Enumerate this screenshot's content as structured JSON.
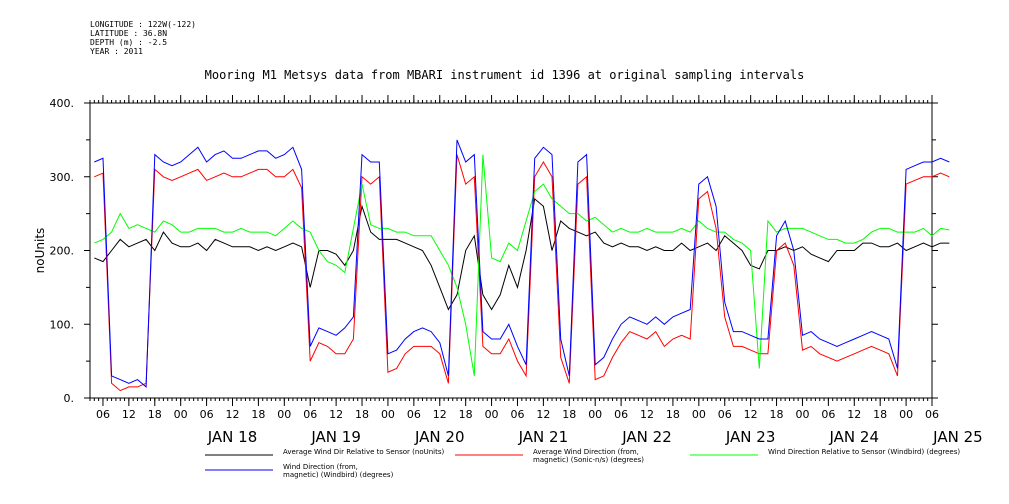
{
  "header": {
    "longitude": "LONGITUDE : 122W(-122)",
    "latitude": "LATITUDE : 36.8N",
    "depth": "DEPTH (m) : -2.5",
    "year": "YEAR : 2011"
  },
  "chart_data": {
    "type": "line",
    "title": "Mooring M1 Metsys data from MBARI instrument id 1396 at original sampling intervals",
    "ylabel": "noUnits",
    "ylim": [
      0,
      400
    ],
    "yticks": [
      0,
      100,
      200,
      300,
      400
    ],
    "ytick_labels": [
      "0.",
      "100.",
      "200.",
      "300.",
      "400."
    ],
    "xlim": [
      "2011-01-17T03:00",
      "2011-01-25T06:00"
    ],
    "hour_ticks": [
      "06",
      "12",
      "18",
      "00",
      "06",
      "12",
      "18",
      "00",
      "06",
      "12",
      "18",
      "00",
      "06",
      "12",
      "18",
      "00",
      "06",
      "12",
      "18",
      "00",
      "06",
      "12",
      "18",
      "00",
      "06",
      "12",
      "18",
      "00",
      "06",
      "12",
      "18",
      "00",
      "06"
    ],
    "date_labels": [
      "JAN 18",
      "JAN 19",
      "JAN 20",
      "JAN 21",
      "JAN 22",
      "JAN 23",
      "JAN 24",
      "JAN 25"
    ],
    "x_unit": "hours since 2011-01-17 00:00",
    "x": [
      4,
      6,
      8,
      10,
      12,
      14,
      16,
      18,
      20,
      22,
      24,
      26,
      28,
      30,
      32,
      34,
      36,
      38,
      40,
      42,
      44,
      46,
      48,
      50,
      52,
      54,
      56,
      58,
      60,
      62,
      64,
      66,
      68,
      70,
      72,
      74,
      76,
      78,
      80,
      82,
      84,
      86,
      88,
      90,
      92,
      94,
      96,
      98,
      100,
      102,
      104,
      106,
      108,
      110,
      112,
      114,
      116,
      118,
      120,
      122,
      124,
      126,
      128,
      130,
      132,
      134,
      136,
      138,
      140,
      142,
      144,
      146,
      148,
      150,
      152,
      154,
      156,
      158,
      160,
      162,
      164,
      166,
      168,
      170,
      172,
      174,
      176,
      178,
      180,
      182,
      184,
      186,
      188,
      190,
      192,
      194,
      196,
      198,
      200,
      202
    ],
    "series": [
      {
        "name": "Average Wind Dir Relative to Sensor (noUnits)",
        "color": "#000000",
        "values": [
          190,
          185,
          200,
          215,
          205,
          210,
          215,
          200,
          225,
          210,
          205,
          205,
          210,
          200,
          215,
          210,
          205,
          205,
          205,
          200,
          205,
          200,
          205,
          210,
          205,
          150,
          200,
          200,
          195,
          180,
          200,
          260,
          225,
          215,
          215,
          215,
          210,
          205,
          200,
          180,
          150,
          120,
          140,
          200,
          220,
          140,
          120,
          140,
          180,
          150,
          200,
          270,
          260,
          200,
          240,
          230,
          225,
          220,
          225,
          210,
          205,
          210,
          205,
          205,
          200,
          205,
          200,
          200,
          210,
          200,
          205,
          210,
          200,
          220,
          210,
          200,
          180,
          175,
          200,
          200,
          205,
          200,
          205,
          195,
          190,
          185,
          200,
          200,
          200,
          210,
          210,
          205,
          205,
          210,
          200,
          205,
          210,
          205,
          210,
          210
        ]
      },
      {
        "name": "Average Wind Direction (from, magnetic) (Sonic-n/s) (degrees)",
        "color": "#ff0000",
        "values": [
          300,
          305,
          20,
          10,
          15,
          15,
          20,
          310,
          300,
          295,
          300,
          305,
          310,
          295,
          300,
          305,
          300,
          300,
          305,
          310,
          310,
          300,
          300,
          310,
          285,
          50,
          75,
          70,
          60,
          60,
          80,
          300,
          290,
          300,
          35,
          40,
          60,
          70,
          70,
          70,
          60,
          20,
          330,
          290,
          300,
          70,
          60,
          60,
          80,
          50,
          30,
          300,
          320,
          300,
          55,
          20,
          290,
          300,
          25,
          30,
          55,
          75,
          90,
          85,
          80,
          90,
          70,
          80,
          85,
          80,
          270,
          280,
          230,
          110,
          70,
          70,
          65,
          60,
          60,
          200,
          210,
          180,
          65,
          70,
          60,
          55,
          50,
          55,
          60,
          65,
          70,
          65,
          60,
          30,
          290,
          295,
          300,
          300,
          305,
          300
        ]
      },
      {
        "name": "Wind Direction Relative to Sensor (Windbird) (degrees)",
        "color": "#00ff00",
        "values": [
          210,
          215,
          225,
          250,
          230,
          235,
          230,
          225,
          240,
          235,
          225,
          225,
          230,
          230,
          230,
          225,
          225,
          230,
          225,
          225,
          225,
          220,
          230,
          240,
          230,
          225,
          200,
          185,
          180,
          170,
          230,
          290,
          235,
          230,
          230,
          225,
          225,
          220,
          220,
          220,
          200,
          180,
          150,
          100,
          30,
          330,
          190,
          185,
          210,
          200,
          240,
          280,
          290,
          270,
          260,
          250,
          250,
          240,
          245,
          235,
          225,
          230,
          225,
          225,
          230,
          225,
          225,
          225,
          230,
          225,
          240,
          230,
          225,
          225,
          215,
          210,
          200,
          40,
          240,
          225,
          230,
          230,
          230,
          225,
          220,
          215,
          215,
          210,
          210,
          215,
          225,
          230,
          230,
          225,
          225,
          225,
          230,
          220,
          230,
          228
        ]
      },
      {
        "name": "Wind Direction (from, magnetic) (Windbird) (degrees)",
        "color": "#0000ff",
        "values": [
          320,
          325,
          30,
          25,
          20,
          25,
          15,
          330,
          320,
          315,
          320,
          330,
          340,
          320,
          330,
          335,
          325,
          325,
          330,
          335,
          335,
          325,
          330,
          340,
          310,
          70,
          95,
          90,
          85,
          95,
          110,
          330,
          320,
          320,
          60,
          65,
          80,
          90,
          95,
          90,
          75,
          30,
          350,
          320,
          330,
          90,
          80,
          80,
          100,
          70,
          45,
          325,
          340,
          330,
          80,
          30,
          320,
          330,
          45,
          55,
          80,
          100,
          110,
          105,
          100,
          110,
          100,
          110,
          115,
          120,
          290,
          300,
          260,
          130,
          90,
          90,
          85,
          80,
          80,
          220,
          240,
          200,
          85,
          90,
          80,
          75,
          70,
          75,
          80,
          85,
          90,
          85,
          80,
          40,
          310,
          315,
          320,
          320,
          325,
          320
        ]
      }
    ],
    "legend": [
      {
        "label": "Average Wind Dir Relative to Sensor (noUnits)",
        "color": "#000000"
      },
      {
        "label": "Average Wind Direction (from, magnetic) (Sonic-n/s) (degrees)",
        "color": "#ff0000"
      },
      {
        "label": "Wind Direction Relative to Sensor (Windbird) (degrees)",
        "color": "#00ff00"
      },
      {
        "label": "Wind Direction (from, magnetic) (Windbird) (degrees)",
        "color": "#0000ff"
      }
    ],
    "legend_lines": [
      [
        "Average Wind Dir Relative to Sensor (noUnits)"
      ],
      [
        "Average Wind Direction (from,",
        "magnetic) (Sonic-n/s) (degrees)"
      ],
      [
        "Wind Direction Relative to Sensor (Windbird) (degrees)"
      ],
      [
        "Wind Direction (from,",
        "magnetic) (Windbird) (degrees)"
      ]
    ]
  }
}
